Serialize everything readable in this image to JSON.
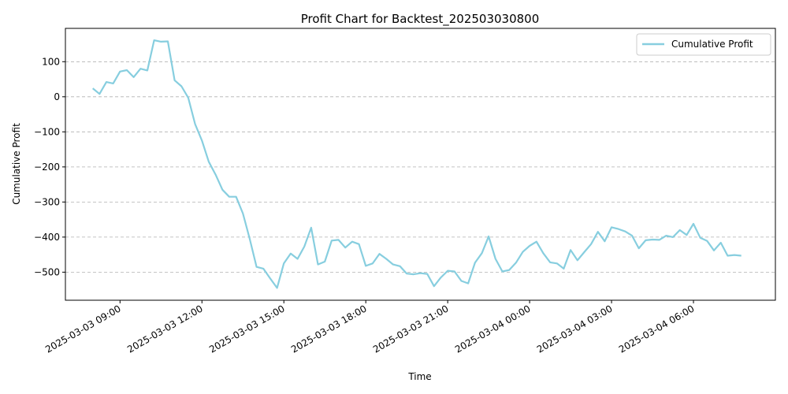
{
  "chart_data": {
    "type": "line",
    "title": "Profit Chart for Backtest_202503030800",
    "xlabel": "Time",
    "ylabel": "Cumulative Profit",
    "xlim": [
      "2025-03-03 07:00",
      "2025-03-04 09:00"
    ],
    "ylim": [
      -580,
      195
    ],
    "grid": "horizontal dashed",
    "legend_position": "top-right",
    "line_color": "#87cedf",
    "x_tick_labels": [
      "2025-03-03 09:00",
      "2025-03-03 12:00",
      "2025-03-03 15:00",
      "2025-03-03 18:00",
      "2025-03-03 21:00",
      "2025-03-04 00:00",
      "2025-03-04 03:00",
      "2025-03-04 06:00"
    ],
    "y_ticks": [
      100,
      0,
      -100,
      -200,
      -300,
      -400,
      -500
    ],
    "y_tick_labels": [
      "100",
      "0",
      "−100",
      "−200",
      "−300",
      "−400",
      "−500"
    ],
    "series": [
      {
        "name": "Cumulative Profit",
        "x": [
          "2025-03-03 08:00",
          "2025-03-03 08:15",
          "2025-03-03 08:30",
          "2025-03-03 08:45",
          "2025-03-03 09:00",
          "2025-03-03 09:15",
          "2025-03-03 09:30",
          "2025-03-03 09:45",
          "2025-03-03 10:00",
          "2025-03-03 10:15",
          "2025-03-03 10:30",
          "2025-03-03 10:45",
          "2025-03-03 11:00",
          "2025-03-03 11:15",
          "2025-03-03 11:30",
          "2025-03-03 11:45",
          "2025-03-03 12:00",
          "2025-03-03 12:15",
          "2025-03-03 12:30",
          "2025-03-03 12:45",
          "2025-03-03 13:00",
          "2025-03-03 13:15",
          "2025-03-03 13:30",
          "2025-03-03 13:45",
          "2025-03-03 14:00",
          "2025-03-03 14:15",
          "2025-03-03 14:30",
          "2025-03-03 14:45",
          "2025-03-03 15:00",
          "2025-03-03 15:15",
          "2025-03-03 15:30",
          "2025-03-03 15:45",
          "2025-03-03 16:00",
          "2025-03-03 16:15",
          "2025-03-03 16:30",
          "2025-03-03 16:45",
          "2025-03-03 17:00",
          "2025-03-03 17:15",
          "2025-03-03 17:30",
          "2025-03-03 17:45",
          "2025-03-03 18:00",
          "2025-03-03 18:15",
          "2025-03-03 18:30",
          "2025-03-03 18:45",
          "2025-03-03 19:00",
          "2025-03-03 19:15",
          "2025-03-03 19:30",
          "2025-03-03 19:45",
          "2025-03-03 20:00",
          "2025-03-03 20:15",
          "2025-03-03 20:30",
          "2025-03-03 20:45",
          "2025-03-03 21:00",
          "2025-03-03 21:15",
          "2025-03-03 21:30",
          "2025-03-03 21:45",
          "2025-03-03 22:00",
          "2025-03-03 22:15",
          "2025-03-03 22:30",
          "2025-03-03 22:45",
          "2025-03-03 23:00",
          "2025-03-03 23:15",
          "2025-03-03 23:30",
          "2025-03-03 23:45",
          "2025-03-04 00:00",
          "2025-03-04 00:15",
          "2025-03-04 00:30",
          "2025-03-04 00:45",
          "2025-03-04 01:00",
          "2025-03-04 01:15",
          "2025-03-04 01:30",
          "2025-03-04 01:45",
          "2025-03-04 02:00",
          "2025-03-04 02:15",
          "2025-03-04 02:30",
          "2025-03-04 02:45",
          "2025-03-04 03:00",
          "2025-03-04 03:15",
          "2025-03-04 03:30",
          "2025-03-04 03:45",
          "2025-03-04 04:00",
          "2025-03-04 04:15",
          "2025-03-04 04:30",
          "2025-03-04 04:45",
          "2025-03-04 05:00",
          "2025-03-04 05:15",
          "2025-03-04 05:30",
          "2025-03-04 05:45",
          "2025-03-04 06:00",
          "2025-03-04 06:15",
          "2025-03-04 06:30",
          "2025-03-04 06:45",
          "2025-03-04 07:00",
          "2025-03-04 07:15",
          "2025-03-04 07:30",
          "2025-03-04 07:45"
        ],
        "y": [
          24,
          8,
          42,
          38,
          72,
          76,
          56,
          80,
          75,
          161,
          157,
          158,
          47,
          30,
          -3,
          -78,
          -125,
          -185,
          -222,
          -265,
          -285,
          -285,
          -333,
          -405,
          -485,
          -490,
          -518,
          -545,
          -475,
          -447,
          -462,
          -427,
          -373,
          -478,
          -470,
          -410,
          -408,
          -430,
          -413,
          -420,
          -482,
          -475,
          -448,
          -462,
          -478,
          -483,
          -504,
          -506,
          -503,
          -505,
          -540,
          -515,
          -496,
          -498,
          -525,
          -532,
          -473,
          -446,
          -398,
          -462,
          -498,
          -494,
          -473,
          -442,
          -425,
          -413,
          -446,
          -472,
          -475,
          -490,
          -437,
          -466,
          -443,
          -420,
          -385,
          -412,
          -372,
          -377,
          -384,
          -396,
          -432,
          -409,
          -407,
          -408,
          -396,
          -400,
          -380,
          -394,
          -362,
          -402,
          -411,
          -438,
          -416,
          -453,
          -451,
          -453
        ]
      }
    ]
  }
}
